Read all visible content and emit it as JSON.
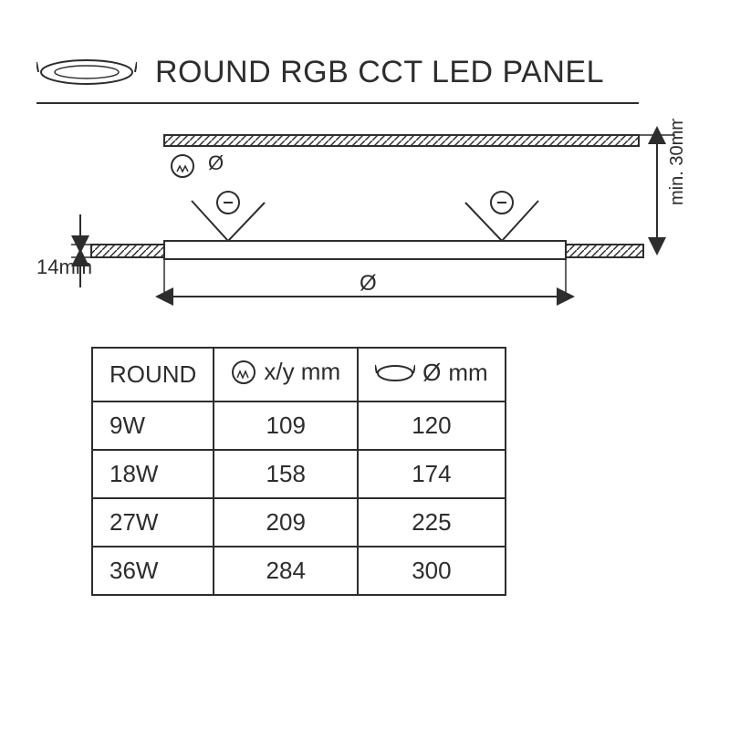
{
  "title": "ROUND RGB CCT LED PANEL",
  "diagram": {
    "thickness_label": "14mm",
    "clearance_label": "min. 30mm",
    "diameter_symbol": "Ø",
    "stroke": "#2d2d2d",
    "hatch_spacing": 7
  },
  "table": {
    "columns": {
      "c1": "ROUND",
      "c2_suffix": "x/y mm",
      "c3_suffix": "mm"
    },
    "rows": [
      {
        "w": "9W",
        "xy": "109",
        "d": "120"
      },
      {
        "w": "18W",
        "xy": "158",
        "d": "174"
      },
      {
        "w": "27W",
        "xy": "209",
        "d": "225"
      },
      {
        "w": "36W",
        "xy": "284",
        "d": "300"
      }
    ]
  }
}
